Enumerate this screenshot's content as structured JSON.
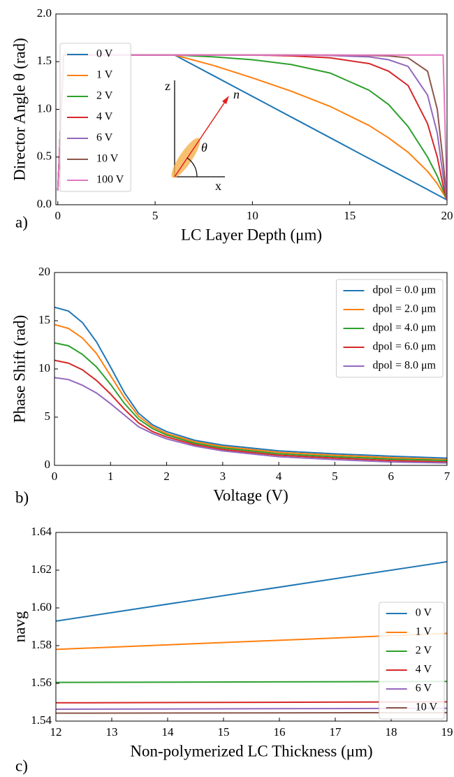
{
  "chart_data": [
    {
      "type": "line",
      "panel_label": "a)",
      "xlabel": "LC Layer Depth (μm)",
      "ylabel": "Director Angle θ (rad)",
      "xlim": [
        -0.1,
        20
      ],
      "xticks": [
        0,
        5,
        10,
        15,
        20
      ],
      "ylim": [
        0,
        2
      ],
      "yticks": [
        {
          "value": 0,
          "label": "0.0"
        },
        {
          "value": 0.5,
          "label": "0.5"
        },
        {
          "value": 1,
          "label": "1.0"
        },
        {
          "value": 1.5,
          "label": "1.5"
        },
        {
          "value": 2,
          "label": "2.0"
        }
      ],
      "legend_loc": "upper left",
      "annotations": [
        "z",
        "x",
        "n",
        "θ"
      ],
      "x": [
        0,
        0.3,
        2,
        4,
        6,
        8,
        10,
        12,
        14,
        16,
        17,
        18,
        19,
        19.5,
        19.8,
        20
      ],
      "series": [
        {
          "name": "0 V",
          "color": "#1f77b4",
          "values": [
            0.15,
            1.57,
            1.57,
            1.57,
            1.57,
            1.353,
            1.136,
            0.919,
            0.702,
            0.484,
            0.376,
            0.267,
            0.159,
            0.104,
            0.072,
            0.05
          ]
        },
        {
          "name": "1 V",
          "color": "#ff7f0e",
          "values": [
            0.15,
            1.57,
            1.57,
            1.57,
            1.57,
            1.46,
            1.33,
            1.19,
            1.03,
            0.83,
            0.7,
            0.55,
            0.35,
            0.22,
            0.12,
            0.05
          ]
        },
        {
          "name": "2 V",
          "color": "#2ca02c",
          "values": [
            0.15,
            1.57,
            1.57,
            1.57,
            1.57,
            1.55,
            1.52,
            1.47,
            1.38,
            1.2,
            1.05,
            0.82,
            0.5,
            0.3,
            0.15,
            0.05
          ]
        },
        {
          "name": "4 V",
          "color": "#d62728",
          "values": [
            0.15,
            1.57,
            1.57,
            1.57,
            1.57,
            1.57,
            1.57,
            1.56,
            1.54,
            1.48,
            1.4,
            1.25,
            0.85,
            0.5,
            0.2,
            0.05
          ]
        },
        {
          "name": "6 V",
          "color": "#9467bd",
          "values": [
            0.15,
            1.57,
            1.57,
            1.57,
            1.57,
            1.57,
            1.57,
            1.57,
            1.565,
            1.55,
            1.52,
            1.45,
            1.15,
            0.75,
            0.3,
            0.05
          ]
        },
        {
          "name": "10 V",
          "color": "#8c564b",
          "values": [
            0.15,
            1.57,
            1.57,
            1.57,
            1.57,
            1.57,
            1.57,
            1.57,
            1.57,
            1.565,
            1.56,
            1.54,
            1.4,
            1.0,
            0.45,
            0.05
          ]
        },
        {
          "name": "100 V",
          "color": "#e377c2",
          "values": [
            0.15,
            1.57,
            1.57,
            1.57,
            1.57,
            1.57,
            1.57,
            1.57,
            1.57,
            1.57,
            1.57,
            1.57,
            1.57,
            1.57,
            1.57,
            0.05
          ]
        }
      ]
    },
    {
      "type": "line",
      "panel_label": "b)",
      "xlabel": "Voltage (V)",
      "ylabel": "Phase Shift (rad)",
      "xlim": [
        0,
        7
      ],
      "xticks": [
        0,
        1,
        2,
        3,
        4,
        5,
        6,
        7
      ],
      "ylim": [
        0,
        20
      ],
      "yticks": [
        0,
        5,
        10,
        15,
        20
      ],
      "legend_loc": "upper right",
      "x": [
        0,
        0.25,
        0.5,
        0.75,
        1,
        1.25,
        1.5,
        1.75,
        2,
        2.5,
        3,
        4,
        5,
        6,
        7
      ],
      "series": [
        {
          "name": "dpol = 0.0 μm",
          "color": "#1f77b4",
          "values": [
            16.4,
            16.0,
            14.8,
            12.8,
            10.2,
            7.5,
            5.4,
            4.2,
            3.5,
            2.6,
            2.1,
            1.5,
            1.2,
            0.95,
            0.75
          ]
        },
        {
          "name": "dpol = 2.0 μm",
          "color": "#ff7f0e",
          "values": [
            14.6,
            14.2,
            13.2,
            11.6,
            9.3,
            7.0,
            5.1,
            4.0,
            3.3,
            2.45,
            1.95,
            1.35,
            1.05,
            0.8,
            0.6
          ]
        },
        {
          "name": "dpol = 4.0 μm",
          "color": "#2ca02c",
          "values": [
            12.7,
            12.4,
            11.5,
            10.2,
            8.4,
            6.4,
            4.8,
            3.8,
            3.15,
            2.3,
            1.8,
            1.2,
            0.9,
            0.65,
            0.5
          ]
        },
        {
          "name": "dpol = 6.0 μm",
          "color": "#d62728",
          "values": [
            10.9,
            10.6,
            9.9,
            8.8,
            7.4,
            5.8,
            4.4,
            3.5,
            2.95,
            2.15,
            1.65,
            1.05,
            0.75,
            0.5,
            0.35
          ]
        },
        {
          "name": "dpol = 8.0 μm",
          "color": "#9467bd",
          "values": [
            9.1,
            8.9,
            8.3,
            7.5,
            6.4,
            5.2,
            4.0,
            3.3,
            2.75,
            2.0,
            1.5,
            0.9,
            0.6,
            0.35,
            0.25
          ]
        }
      ]
    },
    {
      "type": "line",
      "panel_label": "c)",
      "xlabel": "Non-polymerized LC Thickness (μm)",
      "ylabel": "navg",
      "xlim": [
        12,
        19
      ],
      "xticks": [
        12,
        13,
        14,
        15,
        16,
        17,
        18,
        19
      ],
      "ylim": [
        1.54,
        1.64
      ],
      "yticks": [
        1.54,
        1.56,
        1.58,
        {
          "value": 1.6,
          "label": "1.60"
        },
        1.62,
        1.64
      ],
      "legend_loc": "lower right",
      "x": [
        12,
        19
      ],
      "series": [
        {
          "name": "0 V",
          "color": "#1f77b4",
          "values": [
            1.593,
            1.6245
          ]
        },
        {
          "name": "1 V",
          "color": "#ff7f0e",
          "values": [
            1.578,
            1.5865
          ]
        },
        {
          "name": "2 V",
          "color": "#2ca02c",
          "values": [
            1.5605,
            1.561
          ]
        },
        {
          "name": "4 V",
          "color": "#d62728",
          "values": [
            1.5497,
            1.5502
          ]
        },
        {
          "name": "6 V",
          "color": "#9467bd",
          "values": [
            1.5463,
            1.5468
          ]
        },
        {
          "name": "10 V",
          "color": "#8c564b",
          "values": [
            1.5442,
            1.5445
          ]
        }
      ]
    }
  ]
}
